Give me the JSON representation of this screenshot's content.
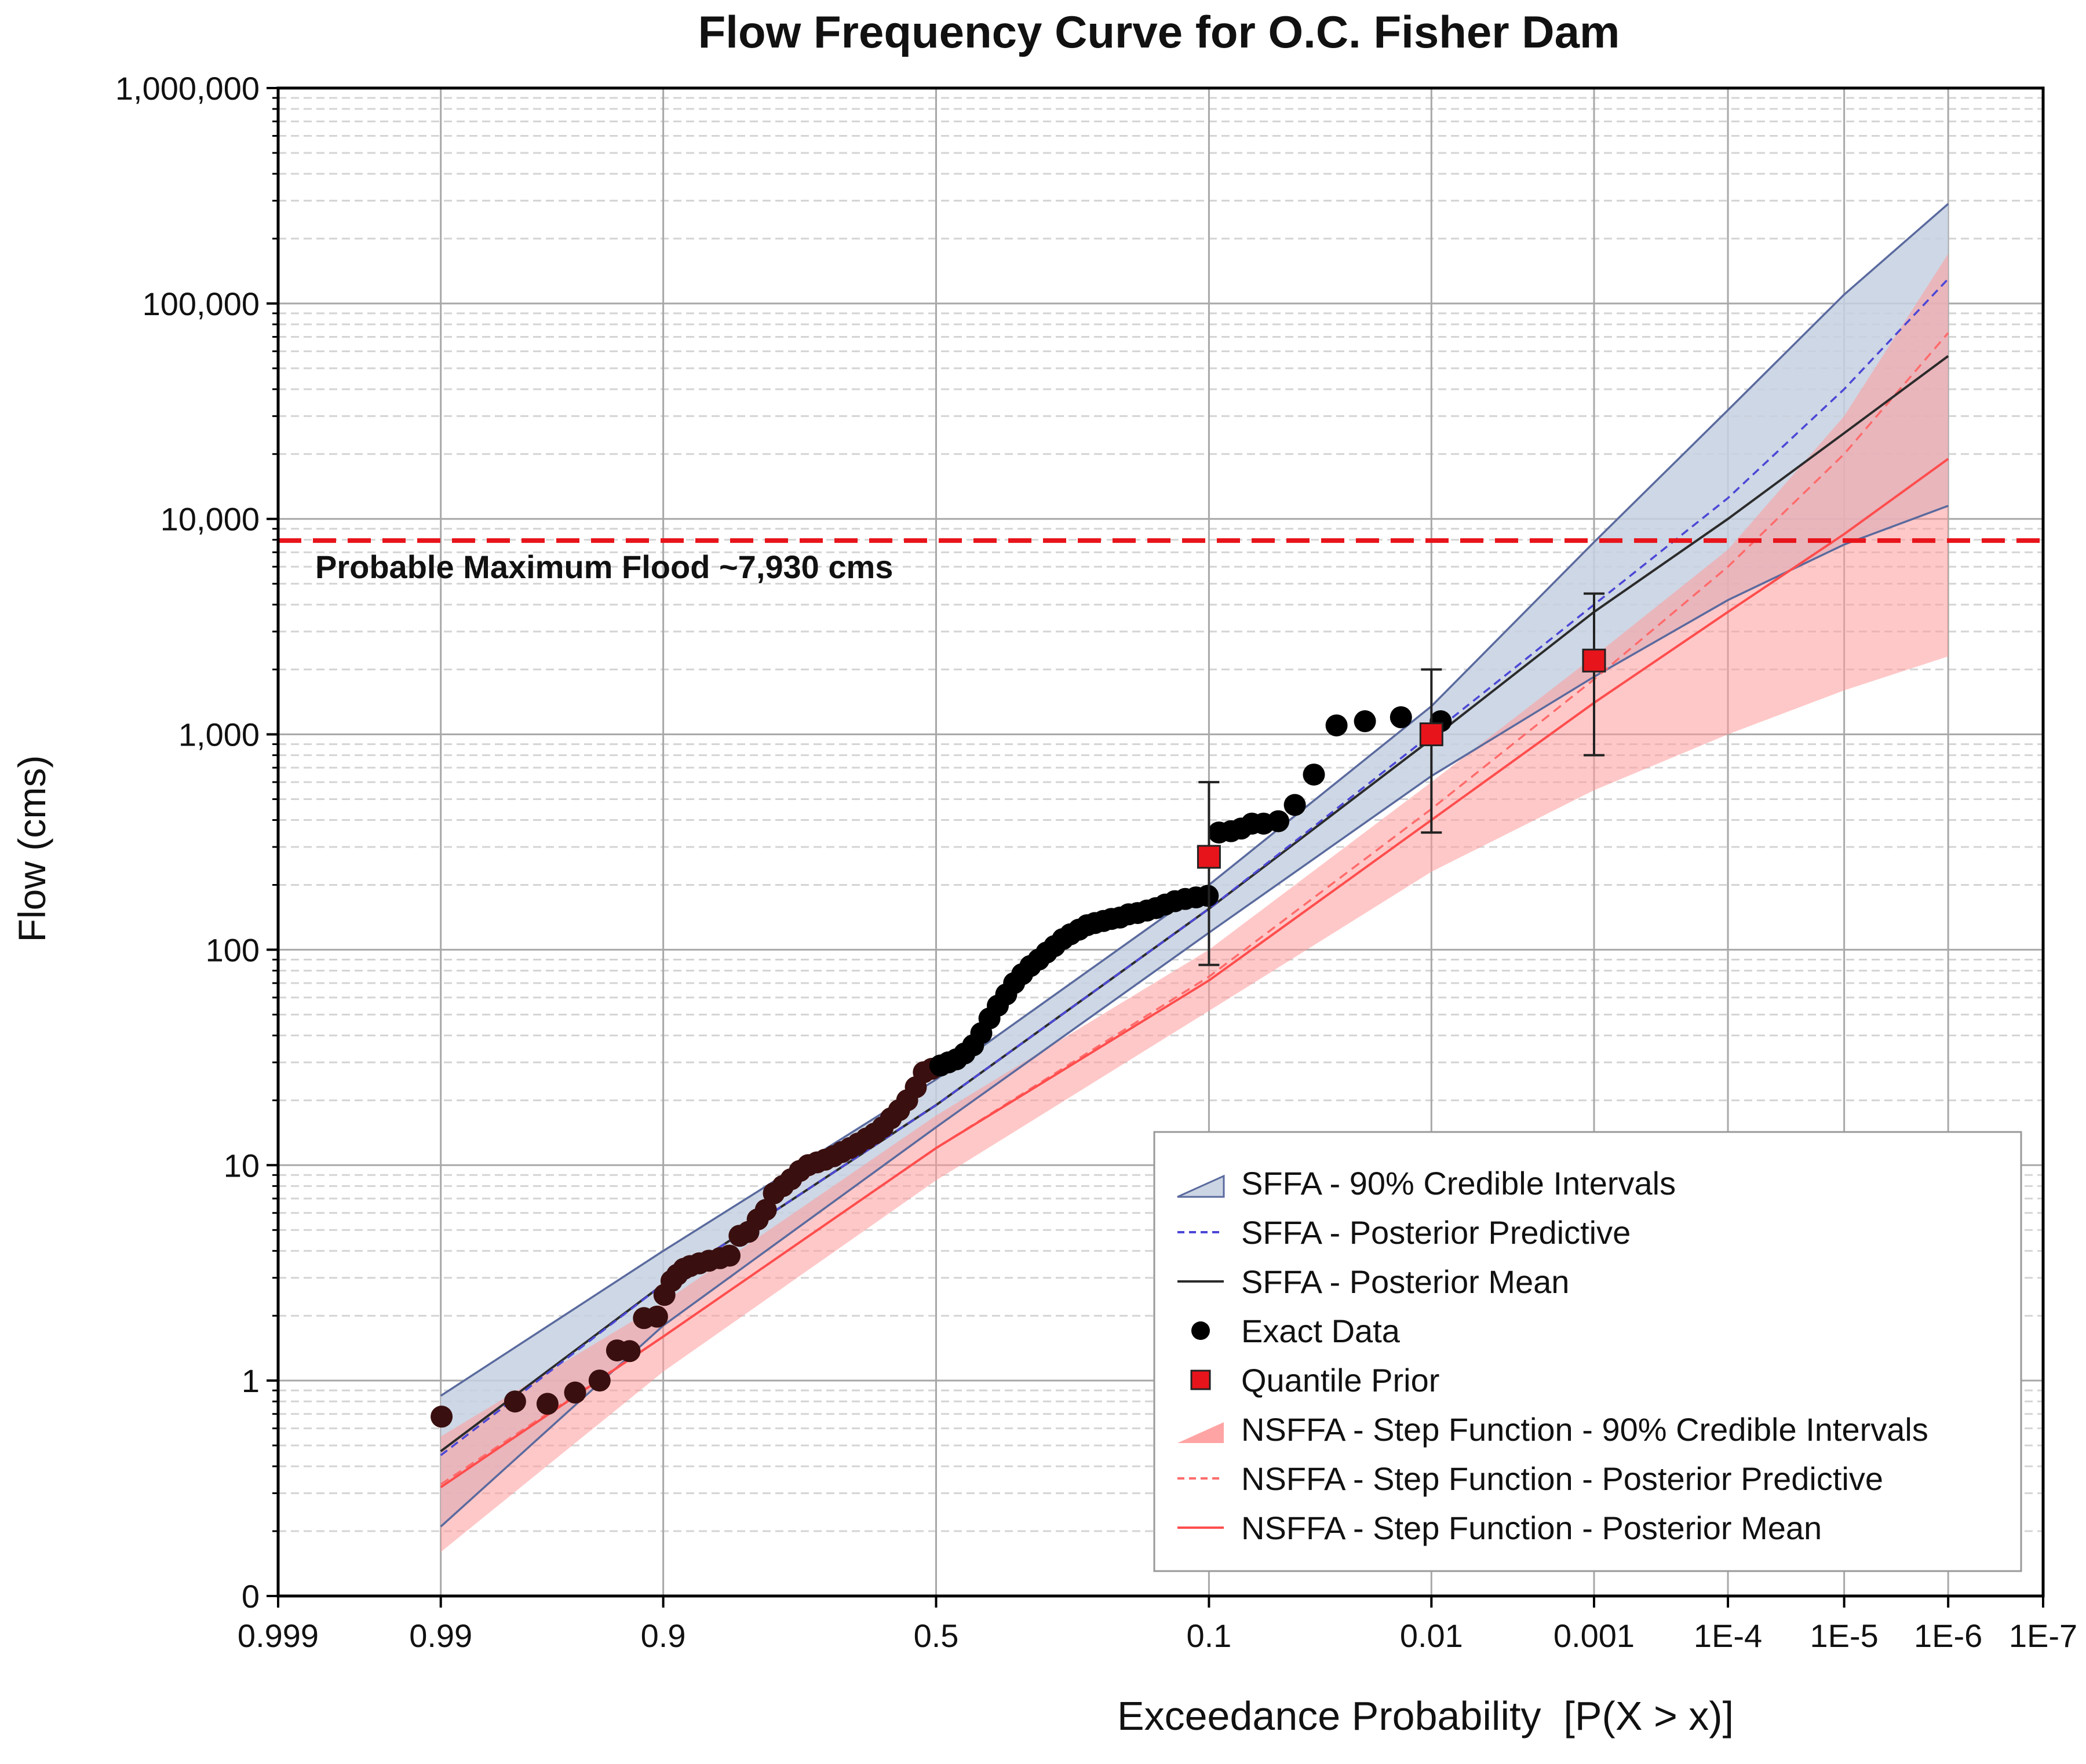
{
  "chart_data": {
    "type": "line",
    "title": "Flow Frequency Curve for O.C. Fisher Dam",
    "xlabel": "Exceedance Probability  [P(X > x)]",
    "ylabel": "Flow (cms)",
    "x_scale": "normal-probability, decreasing",
    "y_scale": "log",
    "xlim": [
      0.999,
      1e-07
    ],
    "ylim": [
      0.1,
      1000000
    ],
    "grid": true,
    "legend_position": "bottom-right",
    "x_ticks": [
      {
        "p": 0.999,
        "label": "0.999"
      },
      {
        "p": 0.99,
        "label": "0.99"
      },
      {
        "p": 0.9,
        "label": "0.9"
      },
      {
        "p": 0.5,
        "label": "0.5"
      },
      {
        "p": 0.1,
        "label": "0.1"
      },
      {
        "p": 0.01,
        "label": "0.01"
      },
      {
        "p": 0.001,
        "label": "0.001"
      },
      {
        "p": 0.0001,
        "label": "1E-4"
      },
      {
        "p": 1e-05,
        "label": "1E-5"
      },
      {
        "p": 1e-06,
        "label": "1E-6"
      },
      {
        "p": 1e-07,
        "label": "1E-7"
      }
    ],
    "y_ticks": [
      {
        "v": 0.1,
        "label": "0"
      },
      {
        "v": 1,
        "label": "1"
      },
      {
        "v": 10,
        "label": "10"
      },
      {
        "v": 100,
        "label": "100"
      },
      {
        "v": 1000,
        "label": "1,000"
      },
      {
        "v": 10000,
        "label": "10,000"
      },
      {
        "v": 100000,
        "label": "100,000"
      },
      {
        "v": 1000000,
        "label": "1,000,000"
      }
    ],
    "pmf": {
      "value": 7930,
      "label": "Probable Maximum Flood ~7,930 cms",
      "color": "#e8141b"
    },
    "legend": [
      {
        "label": "SFFA - 90% Credible Intervals",
        "kind": "band",
        "color": "#5a6a9e"
      },
      {
        "label": "SFFA - Posterior Predictive",
        "kind": "dashed",
        "color": "#4b47d6"
      },
      {
        "label": "SFFA - Posterior Mean",
        "kind": "line",
        "color": "#2b2b2b"
      },
      {
        "label": "Exact Data",
        "kind": "dot",
        "color": "#000000"
      },
      {
        "label": "Quantile Prior",
        "kind": "square",
        "color": "#e8141b"
      },
      {
        "label": "NSFFA - Step Function - 90% Credible Intervals",
        "kind": "band",
        "color": "#ff9999"
      },
      {
        "label": "NSFFA - Step Function - Posterior Predictive",
        "kind": "dashed",
        "color": "#ff6b6b"
      },
      {
        "label": "NSFFA - Step Function - Posterior Mean",
        "kind": "line",
        "color": "#ff4d4d"
      }
    ],
    "series": [
      {
        "name": "SFFA - 90% Credible Intervals",
        "kind": "band",
        "p": [
          0.99,
          0.9,
          0.5,
          0.1,
          0.01,
          0.001,
          0.0001,
          1e-05,
          1e-06
        ],
        "lower": [
          0.21,
          1.8,
          15,
          120,
          640,
          1850,
          4200,
          7600,
          11500
        ],
        "upper": [
          0.85,
          4.0,
          25,
          200,
          1350,
          7800,
          32000,
          110000,
          290000
        ]
      },
      {
        "name": "SFFA - Posterior Predictive",
        "kind": "line",
        "p": [
          0.99,
          0.9,
          0.5,
          0.1,
          0.01,
          0.001,
          0.0001,
          1e-05,
          1e-06
        ],
        "y": [
          0.45,
          2.8,
          19,
          155,
          1000,
          4000,
          12500,
          40000,
          130000
        ]
      },
      {
        "name": "SFFA - Posterior Mean",
        "kind": "line",
        "p": [
          0.99,
          0.9,
          0.5,
          0.1,
          0.01,
          0.001,
          0.0001,
          1e-05,
          1e-06
        ],
        "y": [
          0.47,
          2.8,
          19,
          155,
          950,
          3700,
          10000,
          25000,
          57000
        ]
      },
      {
        "name": "NSFFA - Step Function - 90% Credible Intervals",
        "kind": "band",
        "p": [
          0.99,
          0.9,
          0.5,
          0.1,
          0.01,
          0.001,
          0.0001,
          1e-05,
          1e-06
        ],
        "lower": [
          0.16,
          1.1,
          8.5,
          52,
          230,
          550,
          1000,
          1600,
          2300
        ],
        "upper": [
          0.55,
          2.3,
          17,
          100,
          600,
          2300,
          7200,
          30000,
          170000
        ]
      },
      {
        "name": "NSFFA - Step Function - Posterior Predictive",
        "kind": "line",
        "p": [
          0.99,
          0.9,
          0.5,
          0.1,
          0.01,
          0.001,
          0.0001,
          1e-05,
          1e-06
        ],
        "y": [
          0.33,
          1.6,
          12,
          75,
          450,
          1800,
          6000,
          20000,
          73000
        ]
      },
      {
        "name": "NSFFA - Step Function - Posterior Mean",
        "kind": "line",
        "p": [
          0.99,
          0.9,
          0.5,
          0.1,
          0.01,
          0.001,
          0.0001,
          1e-05,
          1e-06
        ],
        "y": [
          0.32,
          1.6,
          12,
          72,
          400,
          1400,
          3700,
          8500,
          19000
        ]
      },
      {
        "name": "Exact Data",
        "kind": "points",
        "p": [
          0.9899,
          0.976,
          0.966,
          0.955,
          0.943,
          0.933,
          0.925,
          0.915,
          0.905,
          0.899,
          0.893,
          0.888,
          0.882,
          0.876,
          0.867,
          0.857,
          0.845,
          0.834,
          0.822,
          0.811,
          0.799,
          0.788,
          0.777,
          0.764,
          0.752,
          0.739,
          0.726,
          0.712,
          0.699,
          0.685,
          0.671,
          0.657,
          0.643,
          0.628,
          0.614,
          0.599,
          0.584,
          0.569,
          0.554,
          0.538,
          0.523,
          0.508,
          0.492,
          0.477,
          0.462,
          0.447,
          0.431,
          0.416,
          0.401,
          0.386,
          0.371,
          0.357,
          0.343,
          0.329,
          0.315,
          0.302,
          0.289,
          0.276,
          0.264,
          0.251,
          0.239,
          0.228,
          0.216,
          0.205,
          0.194,
          0.183,
          0.172,
          0.161,
          0.151,
          0.141,
          0.131,
          0.121,
          0.111,
          0.101,
          0.092,
          0.083,
          0.076,
          0.069,
          0.062,
          0.054,
          0.046,
          0.038,
          0.03,
          0.022,
          0.0145,
          0.0089
        ],
        "y": [
          0.68,
          0.8,
          0.78,
          0.88,
          1.0,
          1.38,
          1.37,
          1.95,
          1.98,
          2.5,
          2.9,
          3.1,
          3.3,
          3.4,
          3.5,
          3.6,
          3.7,
          3.8,
          4.7,
          4.9,
          5.6,
          6.2,
          7.4,
          8.0,
          8.6,
          9.4,
          10,
          10.3,
          10.6,
          11,
          11.5,
          12,
          12.6,
          13.3,
          14,
          15,
          16.5,
          18,
          20,
          23,
          27,
          28,
          29,
          30,
          31,
          33,
          36,
          41,
          48,
          55,
          62,
          70,
          77,
          84,
          90,
          97,
          104,
          112,
          118,
          124,
          130,
          133,
          136,
          139,
          141,
          146,
          148,
          152,
          156,
          162,
          168,
          172,
          175,
          178,
          350,
          355,
          365,
          385,
          385,
          395,
          470,
          650,
          1100,
          1150,
          1200,
          1150
        ]
      },
      {
        "name": "Quantile Prior",
        "kind": "errorbar",
        "p": [
          0.1,
          0.01,
          0.001
        ],
        "y": [
          270,
          1000,
          2200
        ],
        "low": [
          85,
          350,
          800
        ],
        "high": [
          600,
          2000,
          4500
        ]
      }
    ]
  }
}
